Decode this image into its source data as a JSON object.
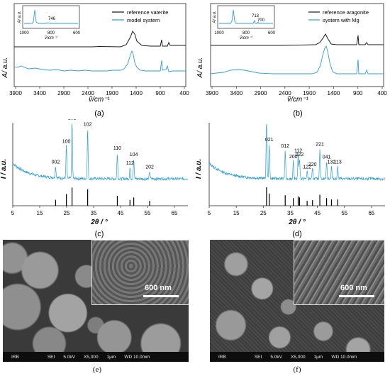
{
  "colors": {
    "reference": "#1a1a1a",
    "model": "#2f9fd6",
    "xrd_ref": "#000000"
  },
  "panels": {
    "a": {
      "label": "(a)",
      "ylabel": "A/ a.u.",
      "xlabel": "ṽ/cm⁻¹",
      "legend": [
        "reference vaterite",
        "model system"
      ],
      "xticks": [
        "3900",
        "3400",
        "2900",
        "2400",
        "1900",
        "1400",
        "900",
        "400"
      ],
      "inset": {
        "ylabel": "A/ a.u.",
        "xlabel": "ṽ/cm⁻¹",
        "xticks": [
          "1000",
          "800",
          "600"
        ],
        "peak_label": "746"
      }
    },
    "b": {
      "label": "(b)",
      "ylabel": "A/ a.u.",
      "xlabel": "ṽ/cm⁻¹",
      "legend": [
        "reference aragonite",
        "system with Mg"
      ],
      "xticks": [
        "3900",
        "3400",
        "2900",
        "2400",
        "1900",
        "1400",
        "900",
        "400"
      ],
      "inset": {
        "ylabel": "A/ a.u.",
        "xlabel": "ṽ/cm⁻¹",
        "xticks": [
          "1000",
          "800",
          "600"
        ],
        "peak_labels": [
          "713",
          "700"
        ]
      }
    },
    "c": {
      "label": "(c)",
      "ylabel": "I / a.u.",
      "xlabel": "2θ / °",
      "xticks": [
        "5",
        "15",
        "25",
        "35",
        "45",
        "55",
        "65"
      ]
    },
    "d": {
      "label": "(d)",
      "ylabel": "I / a.u.",
      "xlabel": "2θ / °",
      "xticks": [
        "5",
        "15",
        "25",
        "35",
        "45",
        "55",
        "65"
      ]
    },
    "e": {
      "label": "(e)",
      "scalebar": "600 nm",
      "sem_bar": [
        "IRB",
        "SEI",
        "5.0kV",
        "X5,000",
        "1μm",
        "WD 10.0mm"
      ]
    },
    "f": {
      "label": "(f)",
      "scalebar": "600 nm",
      "sem_bar": [
        "IRB",
        "SEI",
        "5.0kV",
        "X5,000",
        "1μm",
        "WD 10.0mm"
      ]
    }
  },
  "chart_data": [
    {
      "type": "line",
      "panel": "a",
      "xlim": [
        4000,
        400
      ],
      "xlabel": "ṽ/cm⁻¹",
      "ylabel": "A/ a.u.",
      "series": [
        {
          "name": "reference vaterite",
          "peaks": [
            [
              1450,
              1.0
            ],
            [
              1087,
              0.25
            ],
            [
              876,
              0.7
            ],
            [
              745,
              0.35
            ]
          ]
        },
        {
          "name": "model system",
          "peaks": [
            [
              3350,
              0.15
            ],
            [
              1450,
              1.0
            ],
            [
              1087,
              0.3
            ],
            [
              876,
              0.8
            ],
            [
              745,
              0.4
            ]
          ]
        }
      ],
      "inset": {
        "xlim": [
          1050,
          600
        ],
        "peak": 746
      }
    },
    {
      "type": "line",
      "panel": "b",
      "xlim": [
        4000,
        400
      ],
      "xlabel": "ṽ/cm⁻¹",
      "ylabel": "A/ a.u.",
      "series": [
        {
          "name": "reference aragonite",
          "peaks": [
            [
              1475,
              0.6
            ],
            [
              1083,
              0.15
            ],
            [
              855,
              0.55
            ],
            [
              713,
              0.2
            ]
          ]
        },
        {
          "name": "system with Mg",
          "peaks": [
            [
              3400,
              0.12
            ],
            [
              1480,
              1.0
            ],
            [
              1083,
              0.2
            ],
            [
              855,
              0.65
            ],
            [
              713,
              0.25
            ],
            [
              700,
              0.2
            ]
          ]
        }
      ],
      "inset": {
        "xlim": [
          1050,
          600
        ],
        "peaks": [
          713,
          700
        ]
      }
    },
    {
      "type": "line",
      "panel": "c",
      "xlim": [
        5,
        70
      ],
      "xlabel": "2θ / °",
      "ylabel": "I / a.u.",
      "peaks": [
        {
          "hkl": "002",
          "x": 20.9,
          "h": 0.18
        },
        {
          "hkl": "100",
          "x": 24.9,
          "h": 0.52
        },
        {
          "hkl": "101",
          "x": 27.0,
          "h": 0.9
        },
        {
          "hkl": "102",
          "x": 32.8,
          "h": 0.8
        },
        {
          "hkl": "110",
          "x": 43.8,
          "h": 0.42
        },
        {
          "hkl": "104",
          "x": 49.9,
          "h": 0.32
        },
        {
          "hkl": "112",
          "x": 48.5,
          "h": 0.18
        },
        {
          "hkl": "202",
          "x": 55.8,
          "h": 0.12
        }
      ]
    },
    {
      "type": "line",
      "panel": "d",
      "xlim": [
        5,
        70
      ],
      "xlabel": "2θ / °",
      "ylabel": "I / a.u.",
      "peaks": [
        {
          "hkl": "111",
          "x": 26.2,
          "h": 0.92
        },
        {
          "hkl": "021",
          "x": 27.2,
          "h": 0.55
        },
        {
          "hkl": "012",
          "x": 33.1,
          "h": 0.45
        },
        {
          "hkl": "200",
          "x": 36.1,
          "h": 0.28
        },
        {
          "hkl": "112",
          "x": 37.9,
          "h": 0.38
        },
        {
          "hkl": "022",
          "x": 38.4,
          "h": 0.32
        },
        {
          "hkl": "122",
          "x": 41.2,
          "h": 0.12
        },
        {
          "hkl": "220",
          "x": 43.2,
          "h": 0.16
        },
        {
          "hkl": "221",
          "x": 45.9,
          "h": 0.48
        },
        {
          "hkl": "041",
          "x": 48.4,
          "h": 0.28
        },
        {
          "hkl": "132",
          "x": 50.2,
          "h": 0.2
        },
        {
          "hkl": "113",
          "x": 52.5,
          "h": 0.2
        }
      ]
    }
  ]
}
